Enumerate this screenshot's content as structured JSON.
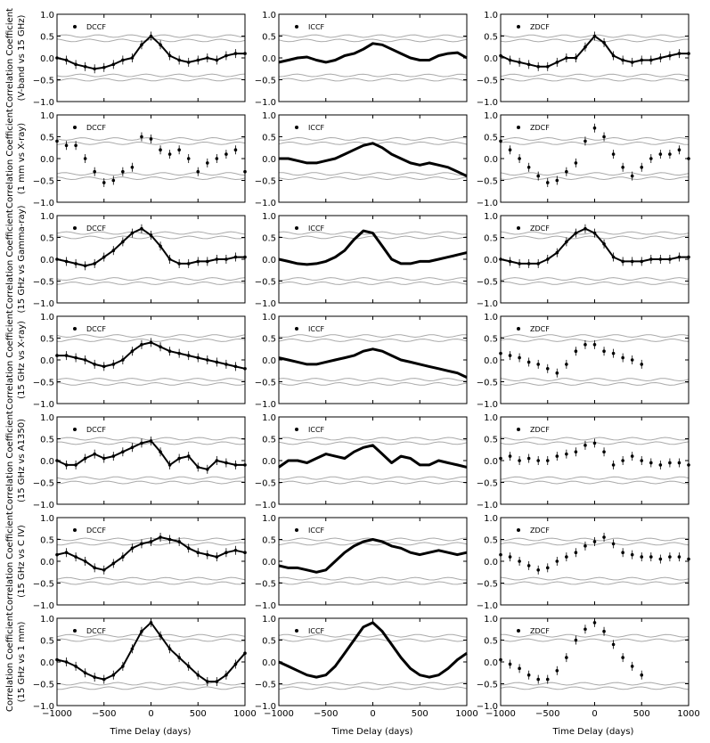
{
  "figure": {
    "xlabel": "Time Delay (days)",
    "ylabel_main": "Correlation Coefficient",
    "method_labels": [
      "DCCF",
      "ICCF",
      "ZDCF"
    ],
    "xticks": [
      "−1000",
      "−500",
      "0",
      "500",
      "1000"
    ],
    "yticks": [
      "1.0",
      "0.5",
      "0.0",
      "−0.5",
      "−1.0"
    ],
    "colors": {
      "data": "#000000",
      "significance": "#aaaaaa"
    }
  },
  "chart_data": [
    {
      "type": "line",
      "row": 1,
      "pair": "(V-band vs 15 GHz)",
      "method": "DCCF",
      "xlim": [
        -1000,
        1000
      ],
      "ylim": [
        -1,
        1
      ],
      "x": [
        -1000,
        -900,
        -800,
        -700,
        -600,
        -500,
        -400,
        -300,
        -200,
        -100,
        0,
        100,
        200,
        300,
        400,
        500,
        600,
        700,
        800,
        900,
        1000
      ],
      "y": [
        0.0,
        -0.05,
        -0.15,
        -0.2,
        -0.25,
        -0.22,
        -0.15,
        -0.05,
        0.0,
        0.3,
        0.5,
        0.3,
        0.05,
        -0.05,
        -0.1,
        -0.05,
        0.0,
        -0.05,
        0.05,
        0.1,
        0.1
      ],
      "sig_upper": [
        0.5,
        0.4
      ],
      "sig_lower": [
        -0.4,
        -0.5
      ]
    },
    {
      "type": "line",
      "row": 1,
      "pair": "(V-band vs 15 GHz)",
      "method": "ICCF",
      "xlim": [
        -1000,
        1000
      ],
      "ylim": [
        -1,
        1
      ],
      "x": [
        -1000,
        -900,
        -800,
        -700,
        -600,
        -500,
        -400,
        -300,
        -200,
        -100,
        0,
        100,
        200,
        300,
        400,
        500,
        600,
        700,
        800,
        900,
        1000
      ],
      "y": [
        -0.1,
        -0.05,
        0.0,
        0.02,
        -0.05,
        -0.1,
        -0.05,
        0.05,
        0.1,
        0.2,
        0.33,
        0.3,
        0.2,
        0.1,
        0.0,
        -0.05,
        -0.05,
        0.05,
        0.1,
        0.12,
        0.0
      ],
      "sig_upper": [
        0.5,
        0.4
      ],
      "sig_lower": [
        -0.4,
        -0.5
      ]
    },
    {
      "type": "line",
      "row": 1,
      "pair": "(V-band vs 15 GHz)",
      "method": "ZDCF",
      "xlim": [
        -1000,
        1000
      ],
      "ylim": [
        -1,
        1
      ],
      "x": [
        -1000,
        -900,
        -800,
        -700,
        -600,
        -500,
        -400,
        -300,
        -200,
        -100,
        0,
        100,
        200,
        300,
        400,
        500,
        600,
        700,
        800,
        900,
        1000
      ],
      "y": [
        0.05,
        -0.05,
        -0.1,
        -0.15,
        -0.2,
        -0.2,
        -0.1,
        0.0,
        0.0,
        0.25,
        0.5,
        0.35,
        0.05,
        -0.05,
        -0.1,
        -0.05,
        -0.05,
        0.0,
        0.05,
        0.1,
        0.1
      ],
      "sig_upper": [
        0.5,
        0.4
      ],
      "sig_lower": [
        -0.4,
        -0.5
      ]
    },
    {
      "type": "scatter",
      "row": 2,
      "pair": "(1 mm vs X-ray)",
      "method": "DCCF",
      "xlim": [
        -1000,
        1000
      ],
      "ylim": [
        -1,
        1
      ],
      "x": [
        -1000,
        -900,
        -800,
        -700,
        -600,
        -500,
        -400,
        -300,
        -200,
        -100,
        0,
        100,
        200,
        300,
        400,
        500,
        600,
        700,
        800,
        900,
        1000
      ],
      "y": [
        0.4,
        0.3,
        0.3,
        0.0,
        -0.3,
        -0.55,
        -0.5,
        -0.3,
        -0.2,
        0.5,
        0.45,
        0.2,
        0.1,
        0.2,
        0.0,
        -0.3,
        -0.1,
        0.0,
        0.1,
        0.2,
        -0.3
      ],
      "sig_upper": [
        0.45,
        0.35
      ],
      "sig_lower": [
        -0.35,
        -0.45
      ]
    },
    {
      "type": "line",
      "row": 2,
      "pair": "(1 mm vs X-ray)",
      "method": "ICCF",
      "xlim": [
        -1000,
        1000
      ],
      "ylim": [
        -1,
        1
      ],
      "x": [
        -1000,
        -900,
        -800,
        -700,
        -600,
        -500,
        -400,
        -300,
        -200,
        -100,
        0,
        100,
        200,
        300,
        400,
        500,
        600,
        700,
        800,
        900,
        1000
      ],
      "y": [
        0.0,
        0.0,
        -0.05,
        -0.1,
        -0.1,
        -0.05,
        0.0,
        0.1,
        0.2,
        0.3,
        0.35,
        0.25,
        0.1,
        0.0,
        -0.1,
        -0.15,
        -0.1,
        -0.15,
        -0.2,
        -0.3,
        -0.4
      ],
      "sig_upper": [
        0.45,
        0.35
      ],
      "sig_lower": [
        -0.35,
        -0.45
      ]
    },
    {
      "type": "scatter",
      "row": 2,
      "pair": "(1 mm vs X-ray)",
      "method": "ZDCF",
      "xlim": [
        -1000,
        1000
      ],
      "ylim": [
        -1,
        1
      ],
      "x": [
        -1000,
        -900,
        -800,
        -700,
        -600,
        -500,
        -400,
        -300,
        -200,
        -100,
        0,
        100,
        200,
        300,
        400,
        500,
        600,
        700,
        800,
        900,
        1000
      ],
      "y": [
        0.4,
        0.2,
        0.0,
        -0.2,
        -0.4,
        -0.55,
        -0.5,
        -0.3,
        -0.1,
        0.4,
        0.7,
        0.5,
        0.1,
        -0.2,
        -0.4,
        -0.2,
        0.0,
        0.1,
        0.1,
        0.2,
        0.0
      ],
      "sig_upper": [
        0.45,
        0.35
      ],
      "sig_lower": [
        -0.35,
        -0.45
      ]
    },
    {
      "type": "line",
      "row": 3,
      "pair": "(15 GHz vs Gamma-ray)",
      "method": "DCCF",
      "xlim": [
        -1000,
        1000
      ],
      "ylim": [
        -1,
        1
      ],
      "x": [
        -1000,
        -900,
        -800,
        -700,
        -600,
        -500,
        -400,
        -300,
        -200,
        -100,
        0,
        100,
        200,
        300,
        400,
        500,
        600,
        700,
        800,
        900,
        1000
      ],
      "y": [
        0.0,
        -0.05,
        -0.1,
        -0.15,
        -0.1,
        0.05,
        0.2,
        0.4,
        0.6,
        0.7,
        0.55,
        0.3,
        0.0,
        -0.1,
        -0.1,
        -0.05,
        -0.05,
        0.0,
        0.0,
        0.05,
        0.05
      ],
      "sig_upper": [
        0.6,
        0.5
      ],
      "sig_lower": [
        -0.45,
        -0.55
      ]
    },
    {
      "type": "line",
      "row": 3,
      "pair": "(15 GHz vs Gamma-ray)",
      "method": "ICCF",
      "xlim": [
        -1000,
        1000
      ],
      "ylim": [
        -1,
        1
      ],
      "x": [
        -1000,
        -900,
        -800,
        -700,
        -600,
        -500,
        -400,
        -300,
        -200,
        -100,
        0,
        100,
        200,
        300,
        400,
        500,
        600,
        700,
        800,
        900,
        1000
      ],
      "y": [
        0.0,
        -0.05,
        -0.1,
        -0.12,
        -0.1,
        -0.05,
        0.05,
        0.2,
        0.45,
        0.65,
        0.6,
        0.3,
        0.0,
        -0.1,
        -0.1,
        -0.05,
        -0.05,
        0.0,
        0.05,
        0.1,
        0.15
      ],
      "sig_upper": [
        0.6,
        0.5
      ],
      "sig_lower": [
        -0.45,
        -0.55
      ]
    },
    {
      "type": "line",
      "row": 3,
      "pair": "(15 GHz vs Gamma-ray)",
      "method": "ZDCF",
      "xlim": [
        -1000,
        1000
      ],
      "ylim": [
        -1,
        1
      ],
      "x": [
        -1000,
        -900,
        -800,
        -700,
        -600,
        -500,
        -400,
        -300,
        -200,
        -100,
        0,
        100,
        200,
        300,
        400,
        500,
        600,
        700,
        800,
        900,
        1000
      ],
      "y": [
        0.0,
        -0.05,
        -0.1,
        -0.1,
        -0.1,
        0.0,
        0.15,
        0.4,
        0.6,
        0.7,
        0.6,
        0.35,
        0.05,
        -0.05,
        -0.05,
        -0.05,
        0.0,
        0.0,
        0.0,
        0.05,
        0.05
      ],
      "sig_upper": [
        0.6,
        0.5
      ],
      "sig_lower": [
        -0.45,
        -0.55
      ]
    },
    {
      "type": "line",
      "row": 4,
      "pair": "(15 GHz vs X-ray)",
      "method": "DCCF",
      "xlim": [
        -1000,
        1000
      ],
      "ylim": [
        -1,
        1
      ],
      "x": [
        -1000,
        -900,
        -800,
        -700,
        -600,
        -500,
        -400,
        -300,
        -200,
        -100,
        0,
        100,
        200,
        300,
        400,
        500,
        600,
        700,
        800,
        900,
        1000
      ],
      "y": [
        0.1,
        0.1,
        0.05,
        0.0,
        -0.1,
        -0.15,
        -0.1,
        0.0,
        0.2,
        0.35,
        0.4,
        0.3,
        0.2,
        0.15,
        0.1,
        0.05,
        0.0,
        -0.05,
        -0.1,
        -0.15,
        -0.2
      ],
      "sig_upper": [
        0.55,
        0.45
      ],
      "sig_lower": [
        -0.45,
        -0.55
      ]
    },
    {
      "type": "line",
      "row": 4,
      "pair": "(15 GHz vs X-ray)",
      "method": "ICCF",
      "xlim": [
        -1000,
        1000
      ],
      "ylim": [
        -1,
        1
      ],
      "x": [
        -1000,
        -900,
        -800,
        -700,
        -600,
        -500,
        -400,
        -300,
        -200,
        -100,
        0,
        100,
        200,
        300,
        400,
        500,
        600,
        700,
        800,
        900,
        1000
      ],
      "y": [
        0.05,
        0.0,
        -0.05,
        -0.1,
        -0.1,
        -0.05,
        0.0,
        0.05,
        0.1,
        0.2,
        0.25,
        0.2,
        0.1,
        0.0,
        -0.05,
        -0.1,
        -0.15,
        -0.2,
        -0.25,
        -0.3,
        -0.4
      ],
      "sig_upper": [
        0.55,
        0.45
      ],
      "sig_lower": [
        -0.45,
        -0.55
      ]
    },
    {
      "type": "scatter",
      "row": 4,
      "pair": "(15 GHz vs X-ray)",
      "method": "ZDCF",
      "xlim": [
        -1000,
        1000
      ],
      "ylim": [
        -1,
        1
      ],
      "x": [
        -1000,
        -900,
        -800,
        -700,
        -600,
        -500,
        -400,
        -300,
        -200,
        -100,
        0,
        100,
        200,
        300,
        400,
        500
      ],
      "y": [
        0.15,
        0.1,
        0.05,
        -0.05,
        -0.1,
        -0.2,
        -0.3,
        -0.1,
        0.2,
        0.35,
        0.35,
        0.2,
        0.15,
        0.05,
        0.0,
        -0.1
      ],
      "sig_upper": [
        0.55,
        0.45
      ],
      "sig_lower": [
        -0.45,
        -0.55
      ]
    },
    {
      "type": "line",
      "row": 5,
      "pair": "(15 GHz vs A1350)",
      "method": "DCCF",
      "xlim": [
        -1000,
        1000
      ],
      "ylim": [
        -1,
        1
      ],
      "x": [
        -1000,
        -900,
        -800,
        -700,
        -600,
        -500,
        -400,
        -300,
        -200,
        -100,
        0,
        100,
        200,
        300,
        400,
        500,
        600,
        700,
        800,
        900,
        1000
      ],
      "y": [
        0.0,
        -0.1,
        -0.1,
        0.05,
        0.15,
        0.05,
        0.1,
        0.2,
        0.3,
        0.4,
        0.45,
        0.2,
        -0.1,
        0.05,
        0.1,
        -0.15,
        -0.2,
        0.0,
        -0.05,
        -0.1,
        -0.1
      ],
      "sig_upper": [
        0.5,
        0.4
      ],
      "sig_lower": [
        -0.4,
        -0.5
      ]
    },
    {
      "type": "line",
      "row": 5,
      "pair": "(15 GHz vs A1350)",
      "method": "ICCF",
      "xlim": [
        -1000,
        1000
      ],
      "ylim": [
        -1,
        1
      ],
      "x": [
        -1000,
        -900,
        -800,
        -700,
        -600,
        -500,
        -400,
        -300,
        -200,
        -100,
        0,
        100,
        200,
        300,
        400,
        500,
        600,
        700,
        800,
        900,
        1000
      ],
      "y": [
        -0.15,
        0.0,
        0.0,
        -0.05,
        0.05,
        0.15,
        0.1,
        0.05,
        0.2,
        0.3,
        0.35,
        0.15,
        -0.05,
        0.1,
        0.05,
        -0.1,
        -0.1,
        0.0,
        -0.05,
        -0.1,
        -0.15
      ],
      "sig_upper": [
        0.5,
        0.4
      ],
      "sig_lower": [
        -0.4,
        -0.5
      ]
    },
    {
      "type": "scatter",
      "row": 5,
      "pair": "(15 GHz vs A1350)",
      "method": "ZDCF",
      "xlim": [
        -1000,
        1000
      ],
      "ylim": [
        -1,
        1
      ],
      "x": [
        -1000,
        -900,
        -800,
        -700,
        -600,
        -500,
        -400,
        -300,
        -200,
        -100,
        0,
        100,
        200,
        300,
        400,
        500,
        600,
        700,
        800,
        900,
        1000
      ],
      "y": [
        0.05,
        0.1,
        0.0,
        0.05,
        0.0,
        0.0,
        0.1,
        0.15,
        0.2,
        0.35,
        0.4,
        0.2,
        -0.1,
        0.0,
        0.1,
        0.0,
        -0.05,
        -0.1,
        -0.05,
        -0.05,
        -0.1
      ],
      "sig_upper": [
        0.5,
        0.4
      ],
      "sig_lower": [
        -0.4,
        -0.5
      ]
    },
    {
      "type": "line",
      "row": 6,
      "pair": "(15 GHz vs C IV)",
      "method": "DCCF",
      "xlim": [
        -1000,
        1000
      ],
      "ylim": [
        -1,
        1
      ],
      "x": [
        -1000,
        -900,
        -800,
        -700,
        -600,
        -500,
        -400,
        -300,
        -200,
        -100,
        0,
        100,
        200,
        300,
        400,
        500,
        600,
        700,
        800,
        900,
        1000
      ],
      "y": [
        0.15,
        0.2,
        0.1,
        0.0,
        -0.15,
        -0.2,
        -0.05,
        0.1,
        0.3,
        0.4,
        0.45,
        0.55,
        0.5,
        0.45,
        0.3,
        0.2,
        0.15,
        0.1,
        0.2,
        0.25,
        0.2
      ],
      "sig_upper": [
        0.5,
        0.4
      ],
      "sig_lower": [
        -0.4,
        -0.5
      ]
    },
    {
      "type": "line",
      "row": 6,
      "pair": "(15 GHz vs C IV)",
      "method": "ICCF",
      "xlim": [
        -1000,
        1000
      ],
      "ylim": [
        -1,
        1
      ],
      "x": [
        -1000,
        -900,
        -800,
        -700,
        -600,
        -500,
        -400,
        -300,
        -200,
        -100,
        0,
        100,
        200,
        300,
        400,
        500,
        600,
        700,
        800,
        900,
        1000
      ],
      "y": [
        -0.1,
        -0.15,
        -0.15,
        -0.2,
        -0.25,
        -0.2,
        0.0,
        0.2,
        0.35,
        0.45,
        0.5,
        0.45,
        0.35,
        0.3,
        0.2,
        0.15,
        0.2,
        0.25,
        0.2,
        0.15,
        0.2
      ],
      "sig_upper": [
        0.5,
        0.4
      ],
      "sig_lower": [
        -0.4,
        -0.5
      ]
    },
    {
      "type": "scatter",
      "row": 6,
      "pair": "(15 GHz vs C IV)",
      "method": "ZDCF",
      "xlim": [
        -1000,
        1000
      ],
      "ylim": [
        -1,
        1
      ],
      "x": [
        -1000,
        -900,
        -800,
        -700,
        -600,
        -500,
        -400,
        -300,
        -200,
        -100,
        0,
        100,
        200,
        300,
        400,
        500,
        600,
        700,
        800,
        900,
        1000
      ],
      "y": [
        0.15,
        0.1,
        0.0,
        -0.1,
        -0.2,
        -0.15,
        0.0,
        0.1,
        0.2,
        0.35,
        0.45,
        0.55,
        0.4,
        0.2,
        0.15,
        0.1,
        0.1,
        0.05,
        0.1,
        0.1,
        0.05
      ],
      "sig_upper": [
        0.5,
        0.4
      ],
      "sig_lower": [
        -0.4,
        -0.5
      ]
    },
    {
      "type": "line",
      "row": 7,
      "pair": "(15 GHz vs 1 mm)",
      "method": "DCCF",
      "xlim": [
        -1000,
        1000
      ],
      "ylim": [
        -1,
        1
      ],
      "x": [
        -1000,
        -900,
        -800,
        -700,
        -600,
        -500,
        -400,
        -300,
        -200,
        -100,
        0,
        100,
        200,
        300,
        400,
        500,
        600,
        700,
        800,
        900,
        1000
      ],
      "y": [
        0.05,
        0.0,
        -0.1,
        -0.25,
        -0.35,
        -0.4,
        -0.3,
        -0.1,
        0.3,
        0.7,
        0.9,
        0.6,
        0.3,
        0.1,
        -0.1,
        -0.3,
        -0.45,
        -0.45,
        -0.3,
        -0.05,
        0.2
      ],
      "sig_upper": [
        0.6,
        0.5
      ],
      "sig_lower": [
        -0.5,
        -0.6
      ]
    },
    {
      "type": "line",
      "row": 7,
      "pair": "(15 GHz vs 1 mm)",
      "method": "ICCF",
      "xlim": [
        -1000,
        1000
      ],
      "ylim": [
        -1,
        1
      ],
      "x": [
        -1000,
        -900,
        -800,
        -700,
        -600,
        -500,
        -400,
        -300,
        -200,
        -100,
        0,
        100,
        200,
        300,
        400,
        500,
        600,
        700,
        800,
        900,
        1000
      ],
      "y": [
        0.0,
        -0.1,
        -0.2,
        -0.3,
        -0.35,
        -0.3,
        -0.1,
        0.2,
        0.5,
        0.8,
        0.9,
        0.7,
        0.4,
        0.1,
        -0.15,
        -0.3,
        -0.35,
        -0.3,
        -0.15,
        0.05,
        0.2
      ],
      "sig_upper": [
        0.6,
        0.5
      ],
      "sig_lower": [
        -0.5,
        -0.6
      ]
    },
    {
      "type": "scatter",
      "row": 7,
      "pair": "(15 GHz vs 1 mm)",
      "method": "ZDCF",
      "xlim": [
        -1000,
        1000
      ],
      "ylim": [
        -1,
        1
      ],
      "x": [
        -1000,
        -900,
        -800,
        -700,
        -600,
        -500,
        -400,
        -300,
        -200,
        -100,
        0,
        100,
        200,
        300,
        400,
        500
      ],
      "y": [
        0.05,
        -0.05,
        -0.15,
        -0.3,
        -0.4,
        -0.4,
        -0.2,
        0.1,
        0.5,
        0.75,
        0.9,
        0.7,
        0.4,
        0.1,
        -0.1,
        -0.3
      ],
      "sig_upper": [
        0.6,
        0.5
      ],
      "sig_lower": [
        -0.5,
        -0.6
      ]
    }
  ]
}
